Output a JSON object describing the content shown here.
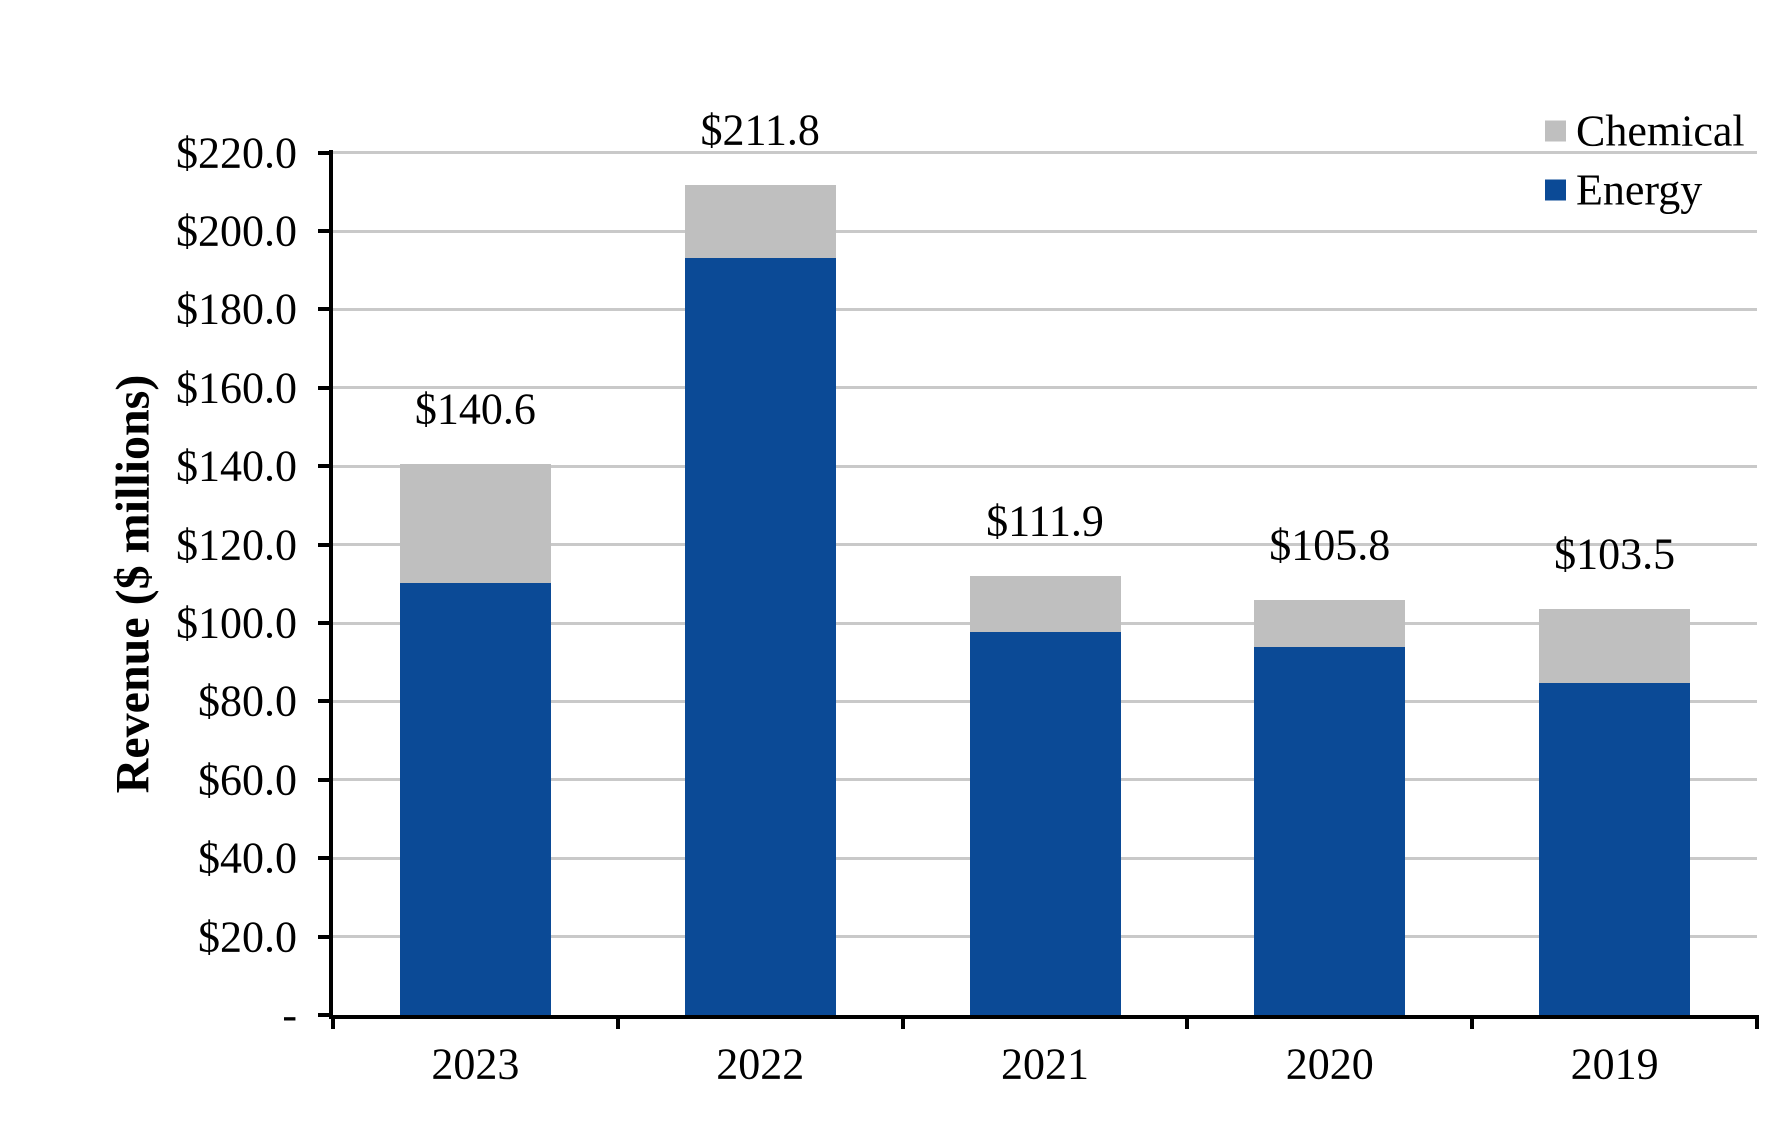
{
  "chart_data": {
    "type": "bar",
    "stacked": true,
    "title": "",
    "ylabel": "Revenue ($ millions)",
    "xlabel": "",
    "categories": [
      "2023",
      "2022",
      "2021",
      "2020",
      "2019"
    ],
    "series": [
      {
        "name": "Chemical",
        "color": "#BFBFBF",
        "values": [
          30.5,
          18.6,
          14.2,
          11.9,
          18.8
        ]
      },
      {
        "name": "Energy",
        "color": "#0B4A96",
        "values": [
          110.1,
          193.2,
          97.7,
          93.9,
          84.7
        ]
      }
    ],
    "totals": [
      140.6,
      211.8,
      111.9,
      105.8,
      103.5
    ],
    "total_labels": [
      "$140.6",
      "$211.8",
      "$111.9",
      "$105.8",
      "$103.5"
    ],
    "ylim": [
      0,
      220
    ],
    "ytick_step": 20,
    "ytick_labels": [
      "-",
      "$20.0",
      "$40.0",
      "$60.0",
      "$80.0",
      "$100.0",
      "$120.0",
      "$140.0",
      "$160.0",
      "$180.0",
      "$200.0",
      "$220.0"
    ],
    "grid": true,
    "legend_position": "top-right",
    "colors": {
      "axis": "#000000",
      "gridline": "#C9C9C9",
      "background": "#FFFFFF",
      "text": "#000000"
    }
  }
}
